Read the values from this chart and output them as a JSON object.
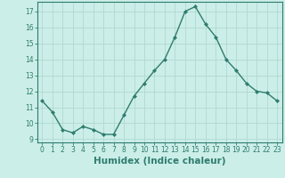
{
  "x": [
    0,
    1,
    2,
    3,
    4,
    5,
    6,
    7,
    8,
    9,
    10,
    11,
    12,
    13,
    14,
    15,
    16,
    17,
    18,
    19,
    20,
    21,
    22,
    23
  ],
  "y": [
    11.4,
    10.7,
    9.6,
    9.4,
    9.8,
    9.6,
    9.3,
    9.3,
    10.5,
    11.7,
    12.5,
    13.3,
    14.0,
    15.4,
    17.0,
    17.3,
    16.2,
    15.4,
    14.0,
    13.3,
    12.5,
    12.0,
    11.9,
    11.4
  ],
  "line_color": "#2e7d6e",
  "marker": "D",
  "marker_size": 2,
  "bg_color": "#cceee8",
  "grid_color": "#b0d8d2",
  "xlabel": "Humidex (Indice chaleur)",
  "ylim": [
    8.8,
    17.6
  ],
  "xlim": [
    -0.5,
    23.5
  ],
  "yticks": [
    9,
    10,
    11,
    12,
    13,
    14,
    15,
    16,
    17
  ],
  "xticks": [
    0,
    1,
    2,
    3,
    4,
    5,
    6,
    7,
    8,
    9,
    10,
    11,
    12,
    13,
    14,
    15,
    16,
    17,
    18,
    19,
    20,
    21,
    22,
    23
  ],
  "tick_labelsize": 5.5,
  "xlabel_fontsize": 7.5
}
